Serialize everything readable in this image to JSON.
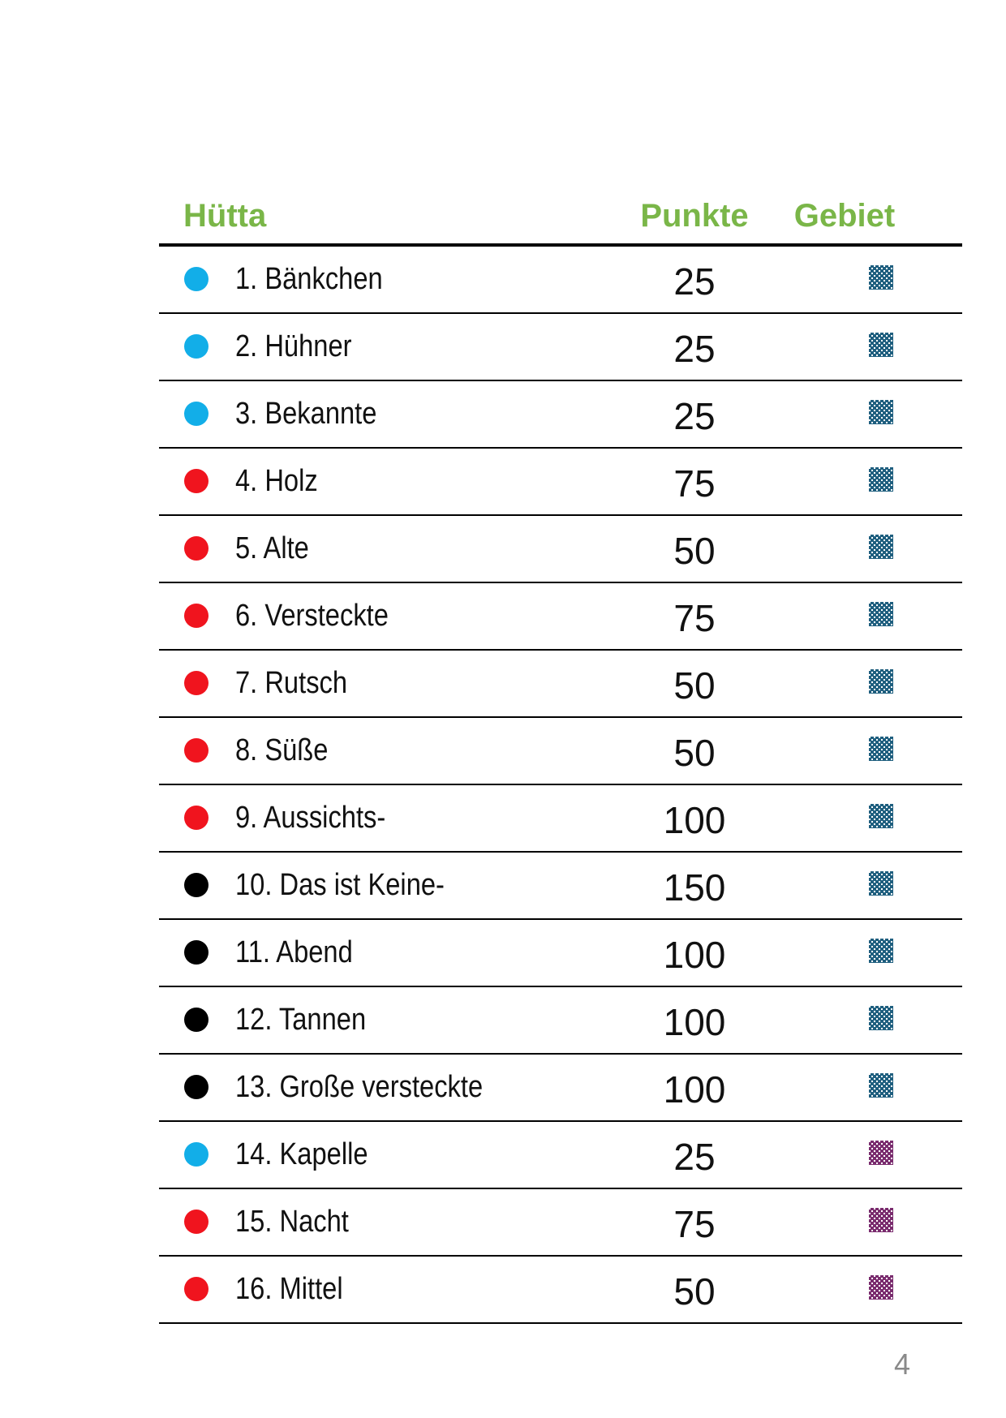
{
  "header": {
    "name": "Hütta",
    "points": "Punkte",
    "area": "Gebiet"
  },
  "colors": {
    "header_text": "#7ab648",
    "blue": "#12aee8",
    "red": "#f0141e",
    "black": "#000000",
    "area_teal": "#1f5f7f",
    "area_purple": "#7a2c6e"
  },
  "rows": [
    {
      "dot": "blue",
      "name": "1. Bänkchen",
      "points": "25",
      "area": "teal"
    },
    {
      "dot": "blue",
      "name": "2. Hühner",
      "points": "25",
      "area": "teal"
    },
    {
      "dot": "blue",
      "name": "3. Bekannte",
      "points": "25",
      "area": "teal"
    },
    {
      "dot": "red",
      "name": "4. Holz",
      "points": "75",
      "area": "teal"
    },
    {
      "dot": "red",
      "name": "5. Alte",
      "points": "50",
      "area": "teal"
    },
    {
      "dot": "red",
      "name": "6. Versteckte",
      "points": "75",
      "area": "teal"
    },
    {
      "dot": "red",
      "name": "7. Rutsch",
      "points": "50",
      "area": "teal"
    },
    {
      "dot": "red",
      "name": "8. Süße",
      "points": "50",
      "area": "teal"
    },
    {
      "dot": "red",
      "name": "9. Aussichts-",
      "points": "100",
      "area": "teal"
    },
    {
      "dot": "black",
      "name": "10. Das ist Keine-",
      "points": "150",
      "area": "teal"
    },
    {
      "dot": "black",
      "name": "11. Abend",
      "points": "100",
      "area": "teal"
    },
    {
      "dot": "black",
      "name": "12. Tannen",
      "points": "100",
      "area": "teal"
    },
    {
      "dot": "black",
      "name": "13. Große versteckte",
      "points": "100",
      "area": "teal"
    },
    {
      "dot": "blue",
      "name": "14. Kapelle",
      "points": "25",
      "area": "purple"
    },
    {
      "dot": "red",
      "name": "15. Nacht",
      "points": "75",
      "area": "purple"
    },
    {
      "dot": "red",
      "name": "16. Mittel",
      "points": "50",
      "area": "purple"
    }
  ],
  "page_number": "4"
}
